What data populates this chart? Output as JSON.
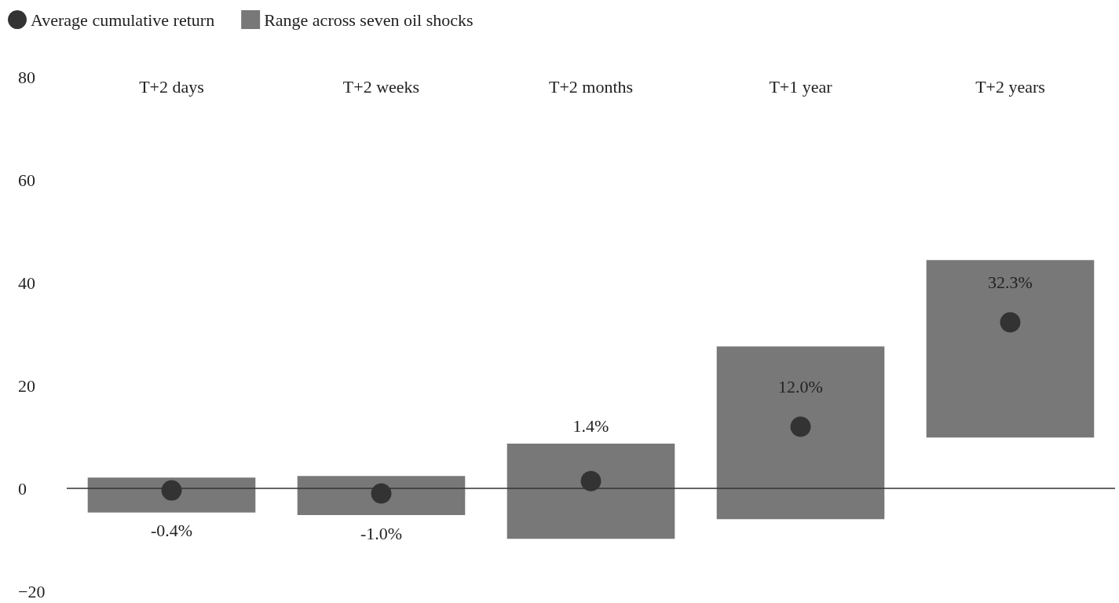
{
  "chart_data": {
    "type": "bar",
    "categories": [
      "T+2 days",
      "T+2 weeks",
      "T+2 months",
      "T+1 year",
      "T+2 years"
    ],
    "series": [
      {
        "name": "Average cumulative return",
        "type": "scatter",
        "color": "#333333",
        "marker": "circle",
        "values": [
          -0.4,
          -1.0,
          1.4,
          12.0,
          32.3
        ],
        "value_labels": [
          "-0.4%",
          "-1.0%",
          "1.4%",
          "12.0%",
          "32.3%"
        ]
      },
      {
        "name": "Range across seven oil shocks",
        "color": "#787878",
        "base": [
          -4.7,
          -5.2,
          -9.8,
          -6.0,
          9.9
        ],
        "values": [
          6.8,
          7.6,
          18.5,
          33.6,
          34.5
        ]
      }
    ],
    "ylim": [
      -20,
      80
    ],
    "yticks": [
      {
        "value": -20,
        "label": "−20"
      },
      0,
      20,
      40,
      60,
      80
    ],
    "ref_lines": [
      {
        "axis": "y",
        "value": 0,
        "color": "#333333"
      }
    ],
    "grid": false,
    "legend": "top left"
  }
}
